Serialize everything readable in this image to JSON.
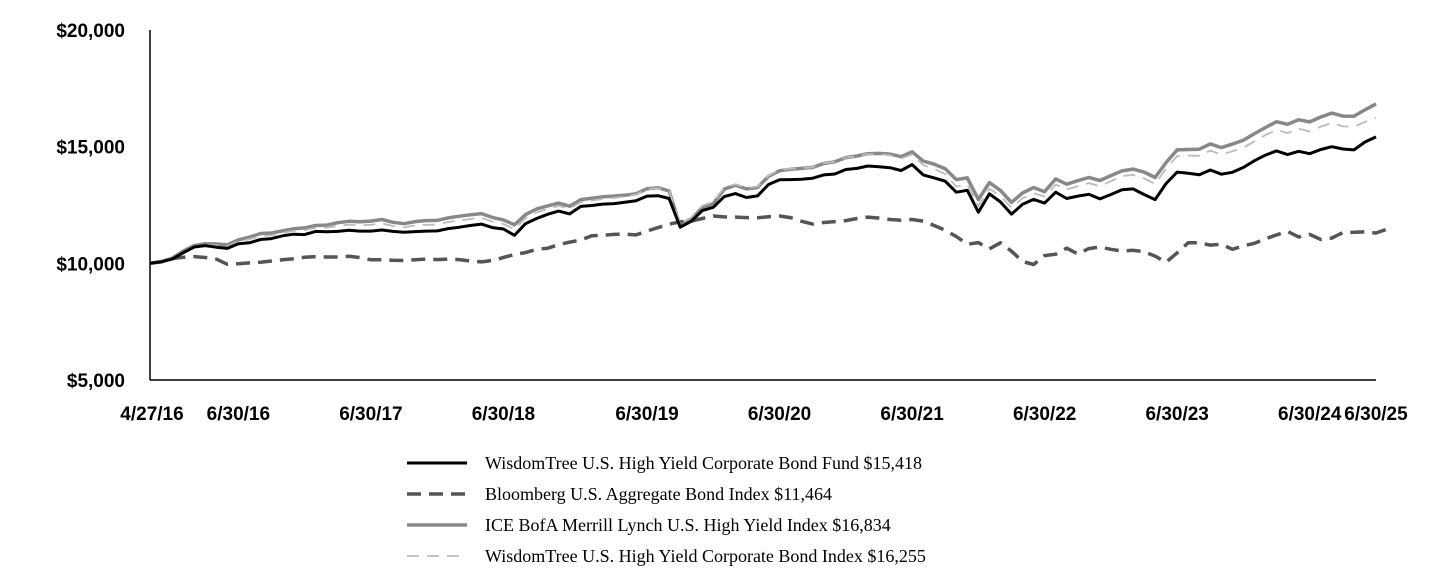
{
  "chart_data": {
    "type": "line",
    "title": "",
    "xlabel": "",
    "ylabel": "",
    "ylim": [
      5000,
      20000
    ],
    "y_ticks": [
      "$20,000",
      "$15,000",
      "$10,000",
      "$5,000"
    ],
    "y_tick_values": [
      20000,
      15000,
      10000,
      5000
    ],
    "x_ticks": [
      "4/27/16",
      "6/30/16",
      "6/30/17",
      "6/30/18",
      "6/30/19",
      "6/30/20",
      "6/30/21",
      "6/30/22",
      "6/30/23",
      "6/30/24",
      "6/30/25"
    ],
    "x_tick_indices": [
      0,
      8,
      20,
      32,
      45,
      57,
      69,
      81,
      93,
      105,
      117
    ],
    "grid": false,
    "legend_position": "bottom-center",
    "series": [
      {
        "name": "WisdomTree U.S. High Yield Corporate Bond Fund $15,418",
        "color": "#000000",
        "style": "solid",
        "values": [
          10000,
          10060,
          10180,
          10450,
          10700,
          10760,
          10690,
          10640,
          10840,
          10880,
          11020,
          11060,
          11180,
          11250,
          11230,
          11370,
          11350,
          11370,
          11420,
          11380,
          11380,
          11430,
          11370,
          11330,
          11360,
          11380,
          11390,
          11490,
          11550,
          11620,
          11680,
          11530,
          11470,
          11200,
          11700,
          11920,
          12100,
          12240,
          12120,
          12440,
          12480,
          12540,
          12560,
          12620,
          12680,
          12880,
          12900,
          12780,
          11550,
          11800,
          12260,
          12400,
          12860,
          12990,
          12820,
          12890,
          13380,
          13580,
          13590,
          13600,
          13650,
          13790,
          13830,
          14020,
          14070,
          14170,
          14140,
          14100,
          13980,
          14230,
          13790,
          13660,
          13520,
          13050,
          13130,
          12190,
          12980,
          12630,
          12110,
          12530,
          12740,
          12580,
          13050,
          12780,
          12880,
          12960,
          12760,
          12950,
          13150,
          13190,
          12950,
          12730,
          13420,
          13910,
          13860,
          13800,
          14000,
          13820,
          13900,
          14110,
          14400,
          14640,
          14820,
          14660,
          14800,
          14700,
          14880,
          15000,
          14900,
          14860,
          15200,
          15418
        ]
      },
      {
        "name": "Bloomberg U.S. Aggregate Bond Index $11,464",
        "color": "#555555",
        "style": "dashed-thick",
        "values": [
          10000,
          10060,
          10200,
          10260,
          10290,
          10250,
          10180,
          9960,
          9980,
          10020,
          10050,
          10100,
          10150,
          10200,
          10260,
          10290,
          10270,
          10270,
          10300,
          10250,
          10150,
          10150,
          10130,
          10120,
          10150,
          10180,
          10160,
          10180,
          10160,
          10100,
          10060,
          10120,
          10250,
          10380,
          10460,
          10600,
          10650,
          10800,
          10910,
          11000,
          11180,
          11200,
          11240,
          11250,
          11220,
          11380,
          11530,
          11680,
          11780,
          11810,
          11920,
          12030,
          11990,
          11980,
          11960,
          11950,
          12000,
          12030,
          11960,
          11800,
          11680,
          11750,
          11790,
          11830,
          11920,
          11980,
          11940,
          11880,
          11850,
          11880,
          11810,
          11620,
          11420,
          11150,
          10820,
          10890,
          10620,
          10880,
          10520,
          10080,
          9950,
          10330,
          10390,
          10650,
          10400,
          10630,
          10700,
          10600,
          10530,
          10560,
          10500,
          10310,
          10050,
          10450,
          10880,
          10880,
          10780,
          10820,
          10600,
          10750,
          10860,
          11050,
          11220,
          11370,
          11130,
          11240,
          11020,
          11080,
          11320,
          11330,
          11350,
          11300,
          11464
        ]
      },
      {
        "name": "ICE BofA Merrill Lynch U.S. High Yield Index $16,834",
        "color": "#888888",
        "style": "solid",
        "values": [
          10000,
          10080,
          10220,
          10520,
          10760,
          10840,
          10830,
          10790,
          11010,
          11120,
          11280,
          11300,
          11390,
          11480,
          11520,
          11620,
          11640,
          11740,
          11800,
          11780,
          11810,
          11880,
          11760,
          11700,
          11790,
          11830,
          11840,
          11950,
          12020,
          12080,
          12130,
          11970,
          11860,
          11650,
          12090,
          12330,
          12460,
          12580,
          12450,
          12730,
          12790,
          12850,
          12880,
          12920,
          12980,
          13200,
          13240,
          13100,
          11600,
          11880,
          12400,
          12560,
          13180,
          13350,
          13190,
          13250,
          13730,
          13970,
          14030,
          14070,
          14110,
          14280,
          14350,
          14530,
          14600,
          14700,
          14710,
          14680,
          14570,
          14780,
          14380,
          14250,
          14050,
          13590,
          13660,
          12730,
          13460,
          13120,
          12610,
          13020,
          13250,
          13070,
          13620,
          13390,
          13540,
          13680,
          13550,
          13760,
          13960,
          14040,
          13910,
          13680,
          14320,
          14860,
          14880,
          14890,
          15120,
          14960,
          15110,
          15280,
          15560,
          15820,
          16070,
          15960,
          16150,
          16060,
          16270,
          16440,
          16310,
          16300,
          16580,
          16834
        ]
      },
      {
        "name": "WisdomTree U.S. High Yield Corporate Bond Index $16,255",
        "color": "#bbbbbb",
        "style": "dashed-thin",
        "values": [
          10000,
          10070,
          10210,
          10490,
          10730,
          10800,
          10770,
          10730,
          10940,
          11030,
          11170,
          11200,
          11300,
          11390,
          11420,
          11520,
          11530,
          11600,
          11660,
          11630,
          11650,
          11710,
          11600,
          11540,
          11620,
          11650,
          11660,
          11770,
          11840,
          11900,
          11950,
          11790,
          11690,
          11460,
          11940,
          12180,
          12330,
          12460,
          12340,
          12620,
          12690,
          12760,
          12800,
          12870,
          12950,
          13180,
          13220,
          13100,
          11700,
          11970,
          12470,
          12630,
          13250,
          13390,
          13230,
          13290,
          13760,
          14000,
          14050,
          14080,
          14120,
          14290,
          14350,
          14530,
          14590,
          14680,
          14680,
          14630,
          14490,
          14670,
          14210,
          14050,
          13820,
          13290,
          13380,
          12460,
          13200,
          12880,
          12370,
          12790,
          13000,
          12860,
          13380,
          13160,
          13300,
          13440,
          13300,
          13520,
          13740,
          13790,
          13640,
          13400,
          14070,
          14600,
          14620,
          14610,
          14830,
          14660,
          14800,
          14960,
          15230,
          15500,
          15720,
          15580,
          15770,
          15650,
          15860,
          16020,
          15870,
          15850,
          16060,
          16255
        ]
      }
    ]
  }
}
